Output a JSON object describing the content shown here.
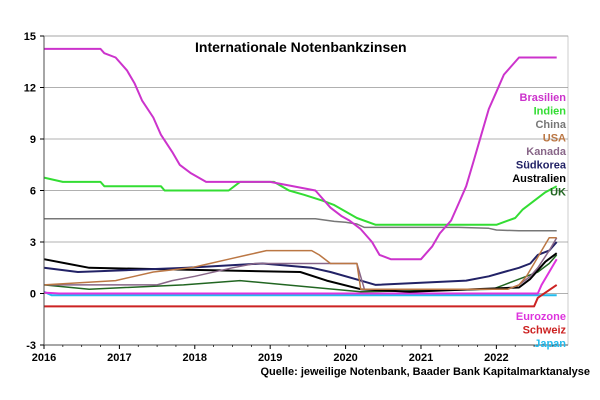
{
  "chart_data": {
    "type": "line",
    "title": "Internationale Notenbankzinsen",
    "source": "Quelle: jeweilige Notenbank, Baader Bank Kapitalmarktanalyse",
    "xlabel": "",
    "ylabel": "",
    "xlim": [
      2016.0,
      2022.95
    ],
    "ylim": [
      -3,
      15
    ],
    "x_ticks": [
      "2016",
      "2017",
      "2018",
      "2019",
      "2020",
      "2021",
      "2022"
    ],
    "y_ticks": [
      "-3",
      "0",
      "3",
      "6",
      "9",
      "12",
      "15"
    ],
    "grid": "horizontal",
    "legend_placement": "right",
    "series": [
      {
        "name": "Brasilien",
        "color": "#cc33cc",
        "width": 2,
        "x": [
          2016.0,
          2016.75,
          2016.8,
          2016.95,
          2017.1,
          2017.2,
          2017.3,
          2017.45,
          2017.55,
          2017.7,
          2017.8,
          2017.95,
          2018.15,
          2018.5,
          2019.0,
          2019.6,
          2019.7,
          2019.8,
          2019.95,
          2020.05,
          2020.2,
          2020.35,
          2020.45,
          2020.6,
          2021.0,
          2021.15,
          2021.25,
          2021.4,
          2021.5,
          2021.6,
          2021.7,
          2021.8,
          2021.9,
          2022.0,
          2022.1,
          2022.2,
          2022.3,
          2022.4,
          2022.5,
          2022.6,
          2022.7,
          2022.8
        ],
        "y": [
          14.25,
          14.25,
          14.0,
          13.75,
          13.0,
          12.25,
          11.25,
          10.25,
          9.25,
          8.25,
          7.5,
          7.0,
          6.5,
          6.5,
          6.5,
          6.0,
          5.5,
          5.0,
          4.5,
          4.25,
          3.75,
          3.0,
          2.25,
          2.0,
          2.0,
          2.75,
          3.5,
          4.25,
          5.25,
          6.25,
          7.75,
          9.25,
          10.75,
          11.75,
          12.75,
          13.25,
          13.75,
          13.75,
          13.75,
          13.75,
          13.75,
          13.75
        ]
      },
      {
        "name": "Indien",
        "color": "#33dd33",
        "width": 2,
        "x": [
          2016.0,
          2016.25,
          2016.75,
          2016.8,
          2017.55,
          2017.6,
          2018.45,
          2018.6,
          2019.05,
          2019.25,
          2019.45,
          2019.7,
          2019.85,
          2020.15,
          2020.4,
          2021.0,
          2022.0,
          2022.25,
          2022.35,
          2022.5,
          2022.65,
          2022.8
        ],
        "y": [
          6.75,
          6.5,
          6.5,
          6.25,
          6.25,
          6.0,
          6.0,
          6.5,
          6.5,
          6.0,
          5.75,
          5.4,
          5.15,
          4.4,
          4.0,
          4.0,
          4.0,
          4.4,
          4.9,
          5.4,
          5.9,
          6.25
        ]
      },
      {
        "name": "China",
        "color": "#777777",
        "width": 1.5,
        "x": [
          2016.0,
          2019.6,
          2019.85,
          2020.0,
          2020.15,
          2020.25,
          2020.5,
          2021.0,
          2021.5,
          2021.9,
          2022.0,
          2022.3,
          2022.8
        ],
        "y": [
          4.35,
          4.35,
          4.2,
          4.15,
          4.05,
          3.85,
          3.85,
          3.85,
          3.85,
          3.8,
          3.7,
          3.65,
          3.65
        ]
      },
      {
        "name": "USA",
        "color": "#bb7744",
        "width": 1.5,
        "x": [
          2016.0,
          2016.95,
          2017.2,
          2017.45,
          2017.95,
          2018.2,
          2018.45,
          2018.7,
          2018.95,
          2019.55,
          2019.65,
          2019.8,
          2020.15,
          2020.2,
          2022.15,
          2022.3,
          2022.4,
          2022.5,
          2022.6,
          2022.7,
          2022.8
        ],
        "y": [
          0.5,
          0.75,
          1.0,
          1.25,
          1.5,
          1.75,
          2.0,
          2.25,
          2.5,
          2.5,
          2.25,
          1.75,
          1.75,
          0.25,
          0.25,
          0.5,
          1.0,
          1.75,
          2.5,
          3.25,
          3.25
        ]
      },
      {
        "name": "Kanada",
        "color": "#886688",
        "width": 1.5,
        "x": [
          2016.0,
          2017.5,
          2017.7,
          2018.0,
          2018.5,
          2018.8,
          2020.15,
          2020.25,
          2022.15,
          2022.3,
          2022.45,
          2022.55,
          2022.7,
          2022.8
        ],
        "y": [
          0.5,
          0.5,
          0.75,
          1.0,
          1.5,
          1.75,
          1.75,
          0.25,
          0.25,
          0.5,
          1.0,
          1.5,
          2.5,
          3.25
        ]
      },
      {
        "name": "Südkorea",
        "color": "#222266",
        "width": 2,
        "x": [
          2016.0,
          2016.45,
          2017.9,
          2018.9,
          2019.55,
          2019.8,
          2020.2,
          2020.4,
          2021.6,
          2021.9,
          2022.1,
          2022.3,
          2022.45,
          2022.55,
          2022.7,
          2022.8
        ],
        "y": [
          1.5,
          1.25,
          1.5,
          1.75,
          1.5,
          1.25,
          0.75,
          0.5,
          0.75,
          1.0,
          1.25,
          1.5,
          1.75,
          2.25,
          2.5,
          3.0
        ]
      },
      {
        "name": "Australien",
        "color": "#000000",
        "width": 2,
        "x": [
          2016.0,
          2016.3,
          2016.6,
          2019.4,
          2019.75,
          2020.2,
          2020.85,
          2022.3,
          2022.45,
          2022.55,
          2022.65,
          2022.8
        ],
        "y": [
          2.0,
          1.75,
          1.5,
          1.25,
          0.75,
          0.25,
          0.1,
          0.35,
          0.85,
          1.35,
          1.85,
          2.35
        ]
      },
      {
        "name": "UK",
        "color": "#226622",
        "width": 1.5,
        "x": [
          2016.0,
          2016.6,
          2017.85,
          2018.6,
          2020.2,
          2021.95,
          2022.1,
          2022.25,
          2022.4,
          2022.55,
          2022.7,
          2022.8
        ],
        "y": [
          0.5,
          0.25,
          0.5,
          0.75,
          0.1,
          0.25,
          0.5,
          0.75,
          1.0,
          1.25,
          1.75,
          2.25
        ]
      },
      {
        "name": "Eurozone",
        "color": "#dd33dd",
        "width": 2,
        "x": [
          2016.0,
          2016.2,
          2022.55,
          2022.6,
          2022.7,
          2022.8
        ],
        "y": [
          0.05,
          0.0,
          0.0,
          0.5,
          1.25,
          2.0
        ]
      },
      {
        "name": "Schweiz",
        "color": "#cc2222",
        "width": 2,
        "x": [
          2016.0,
          2022.5,
          2022.55,
          2022.8
        ],
        "y": [
          -0.75,
          -0.75,
          -0.25,
          0.5
        ]
      },
      {
        "name": "Japan",
        "color": "#22bbee",
        "width": 2,
        "x": [
          2016.0,
          2016.1,
          2022.8
        ],
        "y": [
          0.1,
          -0.1,
          -0.1
        ]
      }
    ]
  }
}
